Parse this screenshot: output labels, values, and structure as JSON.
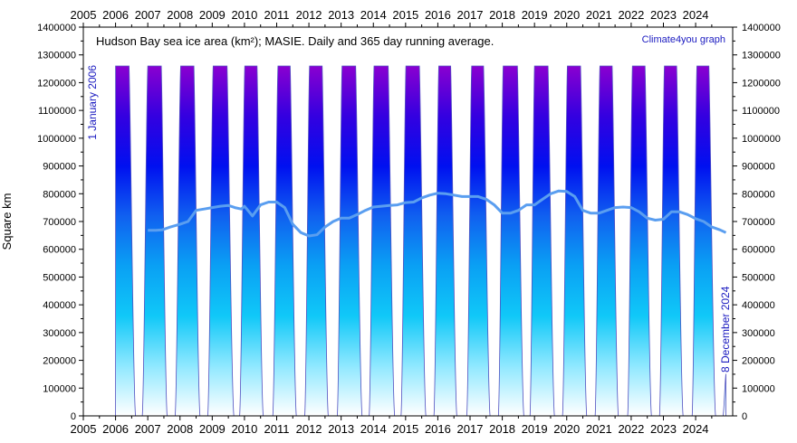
{
  "chart_data": {
    "type": "area",
    "title": "Hudson Bay sea ice area (km²); MASIE. Daily and 365 day running average.",
    "credit": "Climate4you graph",
    "ylabel": "Square km",
    "xlabel": "",
    "annotation_start": "1 January 2006",
    "annotation_end": "8 December 2024",
    "xlim": [
      2005.0,
      2025.15
    ],
    "ylim": [
      0,
      1400000
    ],
    "x_ticks": [
      2005,
      2006,
      2007,
      2008,
      2009,
      2010,
      2011,
      2012,
      2013,
      2014,
      2015,
      2016,
      2017,
      2018,
      2019,
      2020,
      2021,
      2022,
      2023,
      2024
    ],
    "x_tick_labels": [
      "2005",
      "2006",
      "2007",
      "2008",
      "2009",
      "2010",
      "2011",
      "2012",
      "2013",
      "2014",
      "2015",
      "2016",
      "2017",
      "2018",
      "2019",
      "2020",
      "2021",
      "2022",
      "2023",
      "2024"
    ],
    "y_ticks": [
      0,
      100000,
      200000,
      300000,
      400000,
      500000,
      600000,
      700000,
      800000,
      900000,
      1000000,
      1100000,
      1200000,
      1300000,
      1400000
    ],
    "y_tick_labels": [
      "0",
      "100000",
      "200000",
      "300000",
      "400000",
      "500000",
      "600000",
      "700000",
      "800000",
      "900000",
      "1000000",
      "1100000",
      "1200000",
      "1300000",
      "1400000"
    ],
    "grid": false,
    "daily_series": {
      "max_value": 1260000,
      "min_value": 0,
      "start_date": "2006-01-01",
      "end_date": "2024-12-08",
      "seasons": [
        {
          "year": 2006,
          "melt_start": 2006.42,
          "ice_free": 2006.62,
          "ice_free_end": 2006.83,
          "full": 2007.0
        },
        {
          "year": 2007,
          "melt_start": 2007.42,
          "ice_free": 2007.6,
          "ice_free_end": 2007.85,
          "full": 2008.02
        },
        {
          "year": 2008,
          "melt_start": 2008.43,
          "ice_free": 2008.62,
          "ice_free_end": 2008.86,
          "full": 2009.03
        },
        {
          "year": 2009,
          "melt_start": 2009.46,
          "ice_free": 2009.67,
          "ice_free_end": 2009.85,
          "full": 2010.01
        },
        {
          "year": 2010,
          "melt_start": 2010.39,
          "ice_free": 2010.58,
          "ice_free_end": 2010.88,
          "full": 2011.04
        },
        {
          "year": 2011,
          "melt_start": 2011.42,
          "ice_free": 2011.61,
          "ice_free_end": 2011.87,
          "full": 2012.02
        },
        {
          "year": 2012,
          "melt_start": 2012.41,
          "ice_free": 2012.6,
          "ice_free_end": 2012.88,
          "full": 2013.03
        },
        {
          "year": 2013,
          "melt_start": 2013.45,
          "ice_free": 2013.65,
          "ice_free_end": 2013.87,
          "full": 2014.02
        },
        {
          "year": 2014,
          "melt_start": 2014.46,
          "ice_free": 2014.66,
          "ice_free_end": 2014.86,
          "full": 2015.01
        },
        {
          "year": 2015,
          "melt_start": 2015.43,
          "ice_free": 2015.63,
          "ice_free_end": 2015.88,
          "full": 2016.03
        },
        {
          "year": 2016,
          "melt_start": 2016.4,
          "ice_free": 2016.59,
          "ice_free_end": 2016.9,
          "full": 2017.05
        },
        {
          "year": 2017,
          "melt_start": 2017.42,
          "ice_free": 2017.62,
          "ice_free_end": 2017.88,
          "full": 2018.03
        },
        {
          "year": 2018,
          "melt_start": 2018.47,
          "ice_free": 2018.67,
          "ice_free_end": 2018.86,
          "full": 2019.0
        },
        {
          "year": 2019,
          "melt_start": 2019.42,
          "ice_free": 2019.62,
          "ice_free_end": 2019.87,
          "full": 2020.02
        },
        {
          "year": 2020,
          "melt_start": 2020.43,
          "ice_free": 2020.62,
          "ice_free_end": 2020.88,
          "full": 2021.03
        },
        {
          "year": 2021,
          "melt_start": 2021.41,
          "ice_free": 2021.6,
          "ice_free_end": 2021.89,
          "full": 2022.04
        },
        {
          "year": 2022,
          "melt_start": 2022.43,
          "ice_free": 2022.63,
          "ice_free_end": 2022.88,
          "full": 2023.03
        },
        {
          "year": 2023,
          "melt_start": 2023.41,
          "ice_free": 2023.61,
          "ice_free_end": 2023.89,
          "full": 2024.04
        },
        {
          "year": 2024,
          "melt_start": 2024.41,
          "ice_free": 2024.62,
          "ice_free_end": 2024.85,
          "full": 2024.94
        }
      ]
    },
    "running_average": {
      "x": [
        2007.0,
        2007.25,
        2007.45,
        2007.7,
        2008.0,
        2008.25,
        2008.5,
        2008.75,
        2009.0,
        2009.25,
        2009.5,
        2009.7,
        2009.9,
        2010.0,
        2010.25,
        2010.5,
        2010.75,
        2011.0,
        2011.25,
        2011.5,
        2011.75,
        2012.0,
        2012.25,
        2012.5,
        2012.75,
        2013.0,
        2013.25,
        2013.5,
        2013.75,
        2014.0,
        2014.25,
        2014.5,
        2014.75,
        2015.0,
        2015.25,
        2015.5,
        2015.75,
        2016.0,
        2016.25,
        2016.5,
        2016.75,
        2017.0,
        2017.25,
        2017.5,
        2017.75,
        2018.0,
        2018.25,
        2018.5,
        2018.75,
        2019.0,
        2019.25,
        2019.5,
        2019.75,
        2020.0,
        2020.25,
        2020.5,
        2020.75,
        2021.0,
        2021.25,
        2021.5,
        2021.75,
        2022.0,
        2022.25,
        2022.5,
        2022.75,
        2023.0,
        2023.25,
        2023.5,
        2023.75,
        2024.0,
        2024.25,
        2024.5,
        2024.75,
        2024.94
      ],
      "y": [
        668000,
        668000,
        670000,
        680000,
        690000,
        700000,
        740000,
        745000,
        750000,
        755000,
        758000,
        750000,
        745000,
        755000,
        720000,
        760000,
        770000,
        770000,
        750000,
        690000,
        660000,
        648000,
        652000,
        680000,
        700000,
        712000,
        712000,
        725000,
        740000,
        752000,
        755000,
        758000,
        760000,
        768000,
        770000,
        785000,
        795000,
        802000,
        800000,
        795000,
        790000,
        790000,
        790000,
        780000,
        760000,
        730000,
        730000,
        740000,
        760000,
        760000,
        780000,
        800000,
        810000,
        808000,
        790000,
        740000,
        730000,
        730000,
        740000,
        750000,
        752000,
        750000,
        735000,
        712000,
        705000,
        708000,
        735000,
        735000,
        725000,
        710000,
        700000,
        680000,
        670000,
        660000
      ]
    },
    "colors": {
      "area_gradient": [
        "#ffffff",
        "#8fe8ff",
        "#10c8f8",
        "#0aa0f4",
        "#1060f0",
        "#0010f0",
        "#3400e0",
        "#8a00d0"
      ],
      "running_average": "#5a9ef0",
      "daily_outline": "#5050c0",
      "annotation": "#1a1ac0",
      "credit": "#1a1ac0"
    }
  }
}
